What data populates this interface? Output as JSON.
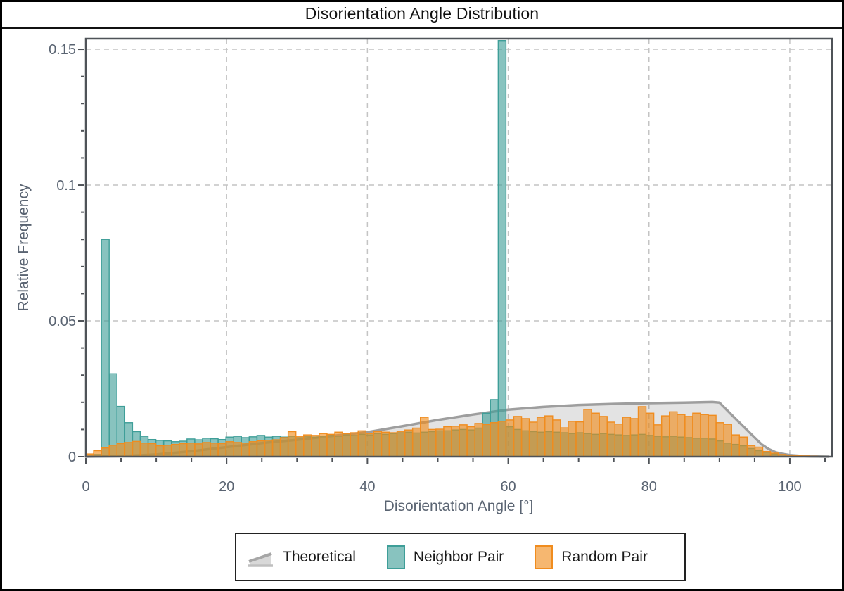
{
  "window": {
    "title": "Disorientation Angle Distribution"
  },
  "chart_data": {
    "type": "bar",
    "subtype": "histogram",
    "title": "Disorientation Angle Distribution",
    "x_axis": {
      "label": "Disorientation Angle [°]",
      "range": [
        0,
        106
      ],
      "major_ticks": [
        {
          "value": 0,
          "label": "0"
        },
        {
          "value": 20,
          "label": "20"
        },
        {
          "value": 40,
          "label": "40"
        },
        {
          "value": 60,
          "label": "60"
        },
        {
          "value": 80,
          "label": "80"
        },
        {
          "value": 100,
          "label": "100"
        }
      ],
      "minor_ticks": [
        5,
        10,
        15,
        25,
        30,
        35,
        45,
        50,
        55,
        65,
        70,
        75,
        85,
        90,
        95,
        105
      ]
    },
    "y_axis": {
      "label": "Relative Frequency",
      "range": [
        0,
        0.1539
      ],
      "major_ticks": [
        {
          "value": 0,
          "label": "0"
        },
        {
          "value": 0.05,
          "label": "0.05"
        },
        {
          "value": 0.1,
          "label": "0.1"
        },
        {
          "value": 0.15,
          "label": "0.15"
        }
      ],
      "minor_ticks": [
        0.01,
        0.02,
        0.03,
        0.04,
        0.06,
        0.07,
        0.08,
        0.09,
        0.11,
        0.12,
        0.13,
        0.14
      ]
    },
    "grid": {
      "style": "dashed",
      "x_lines": [
        20,
        40,
        60,
        80,
        100
      ],
      "y_lines": [
        0.05,
        0.1,
        0.15
      ]
    },
    "bins": {
      "start": 0,
      "width": 1.10526,
      "count": 95
    },
    "series": [
      {
        "name": "Theoretical",
        "type": "line-area",
        "points": [
          [
            0,
            0
          ],
          [
            5,
            0.0002
          ],
          [
            10,
            0.0008
          ],
          [
            15,
            0.002
          ],
          [
            20,
            0.0035
          ],
          [
            25,
            0.005
          ],
          [
            30,
            0.0062
          ],
          [
            35,
            0.0076
          ],
          [
            40,
            0.009
          ],
          [
            45,
            0.0112
          ],
          [
            50,
            0.0135
          ],
          [
            55,
            0.0155
          ],
          [
            60,
            0.0173
          ],
          [
            65,
            0.0183
          ],
          [
            70,
            0.019
          ],
          [
            75,
            0.0194
          ],
          [
            80,
            0.0197
          ],
          [
            85,
            0.0199
          ],
          [
            89,
            0.0201
          ],
          [
            90,
            0.0199
          ],
          [
            92,
            0.0147
          ],
          [
            94,
            0.0096
          ],
          [
            96,
            0.0045
          ],
          [
            97,
            0.0028
          ],
          [
            98,
            0.0016
          ],
          [
            99,
            0.001
          ],
          [
            100,
            0.0006
          ],
          [
            101,
            0.0004
          ],
          [
            102,
            0.0002
          ],
          [
            103,
            0.0001
          ],
          [
            104,
            5e-05
          ],
          [
            105.5,
            0
          ]
        ]
      },
      {
        "name": "Neighbor Pair",
        "type": "histogram",
        "values": [
          0.0002,
          0.0008,
          0.08,
          0.0305,
          0.0185,
          0.0125,
          0.0092,
          0.0075,
          0.0063,
          0.006,
          0.0058,
          0.0055,
          0.0057,
          0.0065,
          0.0062,
          0.0068,
          0.0066,
          0.0063,
          0.0072,
          0.0075,
          0.007,
          0.0073,
          0.0078,
          0.0072,
          0.0075,
          0.0072,
          0.0075,
          0.007,
          0.0073,
          0.0072,
          0.0075,
          0.0078,
          0.0075,
          0.008,
          0.0078,
          0.0082,
          0.008,
          0.0085,
          0.0082,
          0.0085,
          0.0088,
          0.009,
          0.0087,
          0.009,
          0.0092,
          0.0095,
          0.0095,
          0.0098,
          0.01,
          0.0098,
          0.0105,
          0.016,
          0.021,
          0.1532,
          0.011,
          0.01,
          0.0095,
          0.0092,
          0.009,
          0.0092,
          0.009,
          0.0088,
          0.0085,
          0.0088,
          0.0085,
          0.0082,
          0.0085,
          0.0082,
          0.008,
          0.0078,
          0.008,
          0.0082,
          0.0078,
          0.0075,
          0.0073,
          0.0075,
          0.0072,
          0.007,
          0.0068,
          0.0068,
          0.0065,
          0.0058,
          0.005,
          0.0045,
          0.004,
          0.003,
          0.0022,
          0.0016,
          0.001,
          0.0007,
          0.0005,
          0.0003,
          0.0002,
          0.0001,
          0.0001
        ]
      },
      {
        "name": "Random Pair",
        "type": "histogram",
        "values": [
          0.001,
          0.0022,
          0.0032,
          0.0042,
          0.0048,
          0.0052,
          0.0056,
          0.005,
          0.0048,
          0.004,
          0.0042,
          0.0045,
          0.0048,
          0.005,
          0.0047,
          0.0052,
          0.005,
          0.0048,
          0.0055,
          0.0052,
          0.005,
          0.0055,
          0.0058,
          0.006,
          0.0062,
          0.007,
          0.0092,
          0.0075,
          0.008,
          0.0078,
          0.0085,
          0.0082,
          0.009,
          0.0085,
          0.0088,
          0.0095,
          0.0085,
          0.0092,
          0.009,
          0.0088,
          0.0093,
          0.0098,
          0.0105,
          0.0145,
          0.01,
          0.0101,
          0.011,
          0.0112,
          0.0117,
          0.011,
          0.0122,
          0.0118,
          0.0125,
          0.013,
          0.0135,
          0.0148,
          0.014,
          0.0127,
          0.0145,
          0.015,
          0.0135,
          0.0106,
          0.013,
          0.0128,
          0.0174,
          0.016,
          0.0148,
          0.0127,
          0.012,
          0.0145,
          0.014,
          0.0184,
          0.016,
          0.0117,
          0.015,
          0.0165,
          0.0155,
          0.0148,
          0.016,
          0.0155,
          0.0152,
          0.0125,
          0.0119,
          0.008,
          0.0072,
          0.0041,
          0.0035,
          0.0019,
          0.0013,
          0.0008,
          0.0005,
          0.0004,
          0.0003,
          0.0002,
          0.0001
        ]
      }
    ],
    "legend": {
      "position": "bottom-center",
      "entries": [
        "Theoretical",
        "Neighbor Pair",
        "Random Pair"
      ]
    },
    "colors": {
      "background": "#FFFFFF",
      "frame": "#000000",
      "spine": "#4F5358",
      "grid": "#C4C4C4",
      "tick_label": "#5A6472",
      "axis_label": "#5A6472",
      "title": "#111111",
      "theoretical_line": "#9E9E9E",
      "theoretical_fill": "rgba(128,128,128,0.22)",
      "neighbor_fill": "rgba(63,158,152,0.62)",
      "neighbor_stroke": "#3E9E98",
      "random_fill": "rgba(240,138,25,0.62)",
      "random_stroke": "#F08C1E"
    }
  }
}
